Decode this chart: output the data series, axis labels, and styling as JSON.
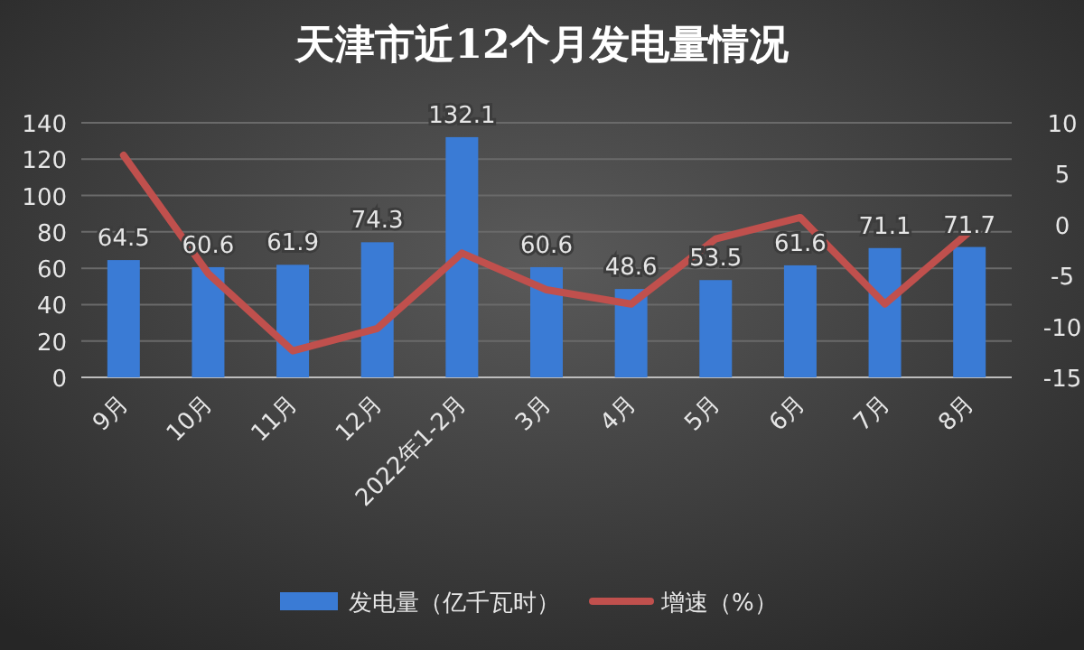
{
  "chart_data": {
    "type": "bar",
    "title": "天津市近12个月发电量情况",
    "categories": [
      "9月",
      "10月",
      "11月",
      "12月",
      "2022年1-2月",
      "3月",
      "4月",
      "5月",
      "6月",
      "7月",
      "8月"
    ],
    "series": [
      {
        "name": "发电量（亿千瓦时）",
        "color": "#3a7bd5",
        "values": [
          64.5,
          60.6,
          61.9,
          74.3,
          132.1,
          60.6,
          48.6,
          53.5,
          61.6,
          71.1,
          71.7
        ],
        "value_labels": [
          "64.5",
          "60.6",
          "61.9",
          "74.3",
          "132.1",
          "60.6",
          "48.6",
          "53.5",
          "61.6",
          "71.1",
          "71.7"
        ]
      },
      {
        "name": "增速（%）",
        "type": "line",
        "axis": "y2",
        "color": "#c0504d",
        "values": [
          6.8,
          -4.8,
          -12.4,
          -10.2,
          -2.8,
          -6.4,
          -7.8,
          -1.4,
          0.7,
          -7.8,
          -0.7
        ]
      }
    ],
    "ylim": [
      0,
      140
    ],
    "yticks": [
      0,
      20,
      40,
      60,
      80,
      100,
      120,
      140
    ],
    "y2lim": [
      -15,
      10
    ],
    "y2ticks": [
      -15,
      -10,
      -5,
      0,
      5,
      10
    ],
    "grid": "y",
    "legend": "bottom"
  }
}
